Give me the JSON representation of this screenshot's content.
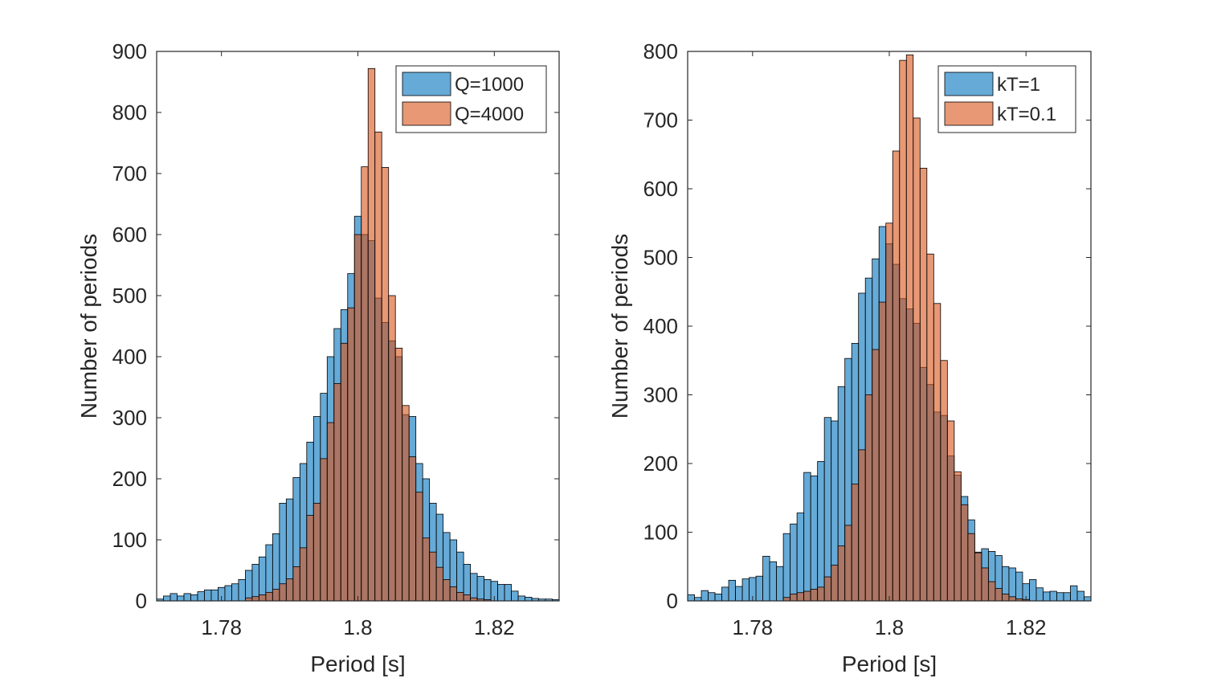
{
  "colors": {
    "series1": "#0072BD",
    "series2": "#D95319",
    "edge": "#000000",
    "axis": "#262626",
    "background": "#ffffff"
  },
  "chart_data": [
    {
      "type": "histogram",
      "xlabel": "Period [s]",
      "ylabel": "Number of periods",
      "xlim": [
        1.7705,
        1.8295
      ],
      "ylim": [
        0,
        900
      ],
      "xticks": [
        1.78,
        1.8,
        1.82
      ],
      "xtick_labels": [
        "1.78",
        "1.8",
        "1.82"
      ],
      "yticks": [
        0,
        100,
        200,
        300,
        400,
        500,
        600,
        700,
        800,
        900
      ],
      "ytick_labels": [
        "0",
        "100",
        "200",
        "300",
        "400",
        "500",
        "600",
        "700",
        "800",
        "900"
      ],
      "legend_position": "top-right",
      "bin_width": 0.001,
      "series": [
        {
          "name": "Q=1000",
          "bin_start": 1.7705,
          "values": [
            3,
            8,
            12,
            8,
            12,
            10,
            15,
            18,
            18,
            22,
            25,
            28,
            35,
            50,
            60,
            72,
            92,
            110,
            160,
            167,
            202,
            225,
            260,
            302,
            340,
            400,
            446,
            477,
            536,
            630,
            600,
            590,
            496,
            456,
            426,
            400,
            305,
            302,
            225,
            200,
            160,
            142,
            112,
            100,
            80,
            60,
            45,
            40,
            35,
            32,
            27,
            27,
            16,
            8,
            6,
            4,
            3,
            3,
            2
          ]
        },
        {
          "name": "Q=4000",
          "bin_start": 1.7705,
          "values": [
            0,
            0,
            0,
            0,
            0,
            0,
            0,
            0,
            0,
            0,
            0,
            0,
            0,
            5,
            7,
            10,
            14,
            19,
            28,
            36,
            56,
            87,
            140,
            160,
            233,
            292,
            356,
            422,
            480,
            600,
            711,
            872,
            768,
            710,
            500,
            414,
            320,
            236,
            178,
            103,
            80,
            55,
            35,
            23,
            14,
            10,
            5,
            3,
            2,
            0,
            0,
            0,
            0,
            0,
            0,
            0,
            0,
            0,
            0
          ]
        }
      ]
    },
    {
      "type": "histogram",
      "xlabel": "Period [s]",
      "ylabel": "Number of periods",
      "xlim": [
        1.7705,
        1.8295
      ],
      "ylim": [
        0,
        800
      ],
      "xticks": [
        1.78,
        1.8,
        1.82
      ],
      "xtick_labels": [
        "1.78",
        "1.8",
        "1.82"
      ],
      "yticks": [
        0,
        100,
        200,
        300,
        400,
        500,
        600,
        700,
        800
      ],
      "ytick_labels": [
        "0",
        "100",
        "200",
        "300",
        "400",
        "500",
        "600",
        "700",
        "800"
      ],
      "legend_position": "top-right",
      "bin_width": 0.001,
      "series": [
        {
          "name": "kT=1",
          "bin_start": 1.7705,
          "values": [
            9,
            5,
            15,
            12,
            10,
            20,
            30,
            21,
            32,
            34,
            36,
            65,
            57,
            50,
            98,
            112,
            128,
            187,
            182,
            203,
            267,
            262,
            312,
            353,
            375,
            448,
            470,
            498,
            545,
            520,
            490,
            440,
            425,
            404,
            340,
            315,
            275,
            270,
            211,
            183,
            152,
            118,
            71,
            76,
            72,
            66,
            50,
            48,
            42,
            25,
            31,
            19,
            13,
            14,
            12,
            12,
            22,
            14,
            6
          ]
        },
        {
          "name": "kT=0.1",
          "bin_start": 1.7705,
          "values": [
            0,
            0,
            0,
            0,
            0,
            0,
            0,
            0,
            0,
            0,
            0,
            0,
            0,
            0,
            5,
            10,
            12,
            14,
            17,
            20,
            35,
            52,
            80,
            110,
            170,
            220,
            300,
            366,
            435,
            550,
            655,
            787,
            795,
            703,
            630,
            505,
            433,
            350,
            262,
            188,
            140,
            98,
            70,
            48,
            28,
            18,
            10,
            6,
            3,
            2,
            0,
            0,
            0,
            0,
            0,
            0,
            0,
            0,
            0
          ]
        }
      ]
    }
  ]
}
